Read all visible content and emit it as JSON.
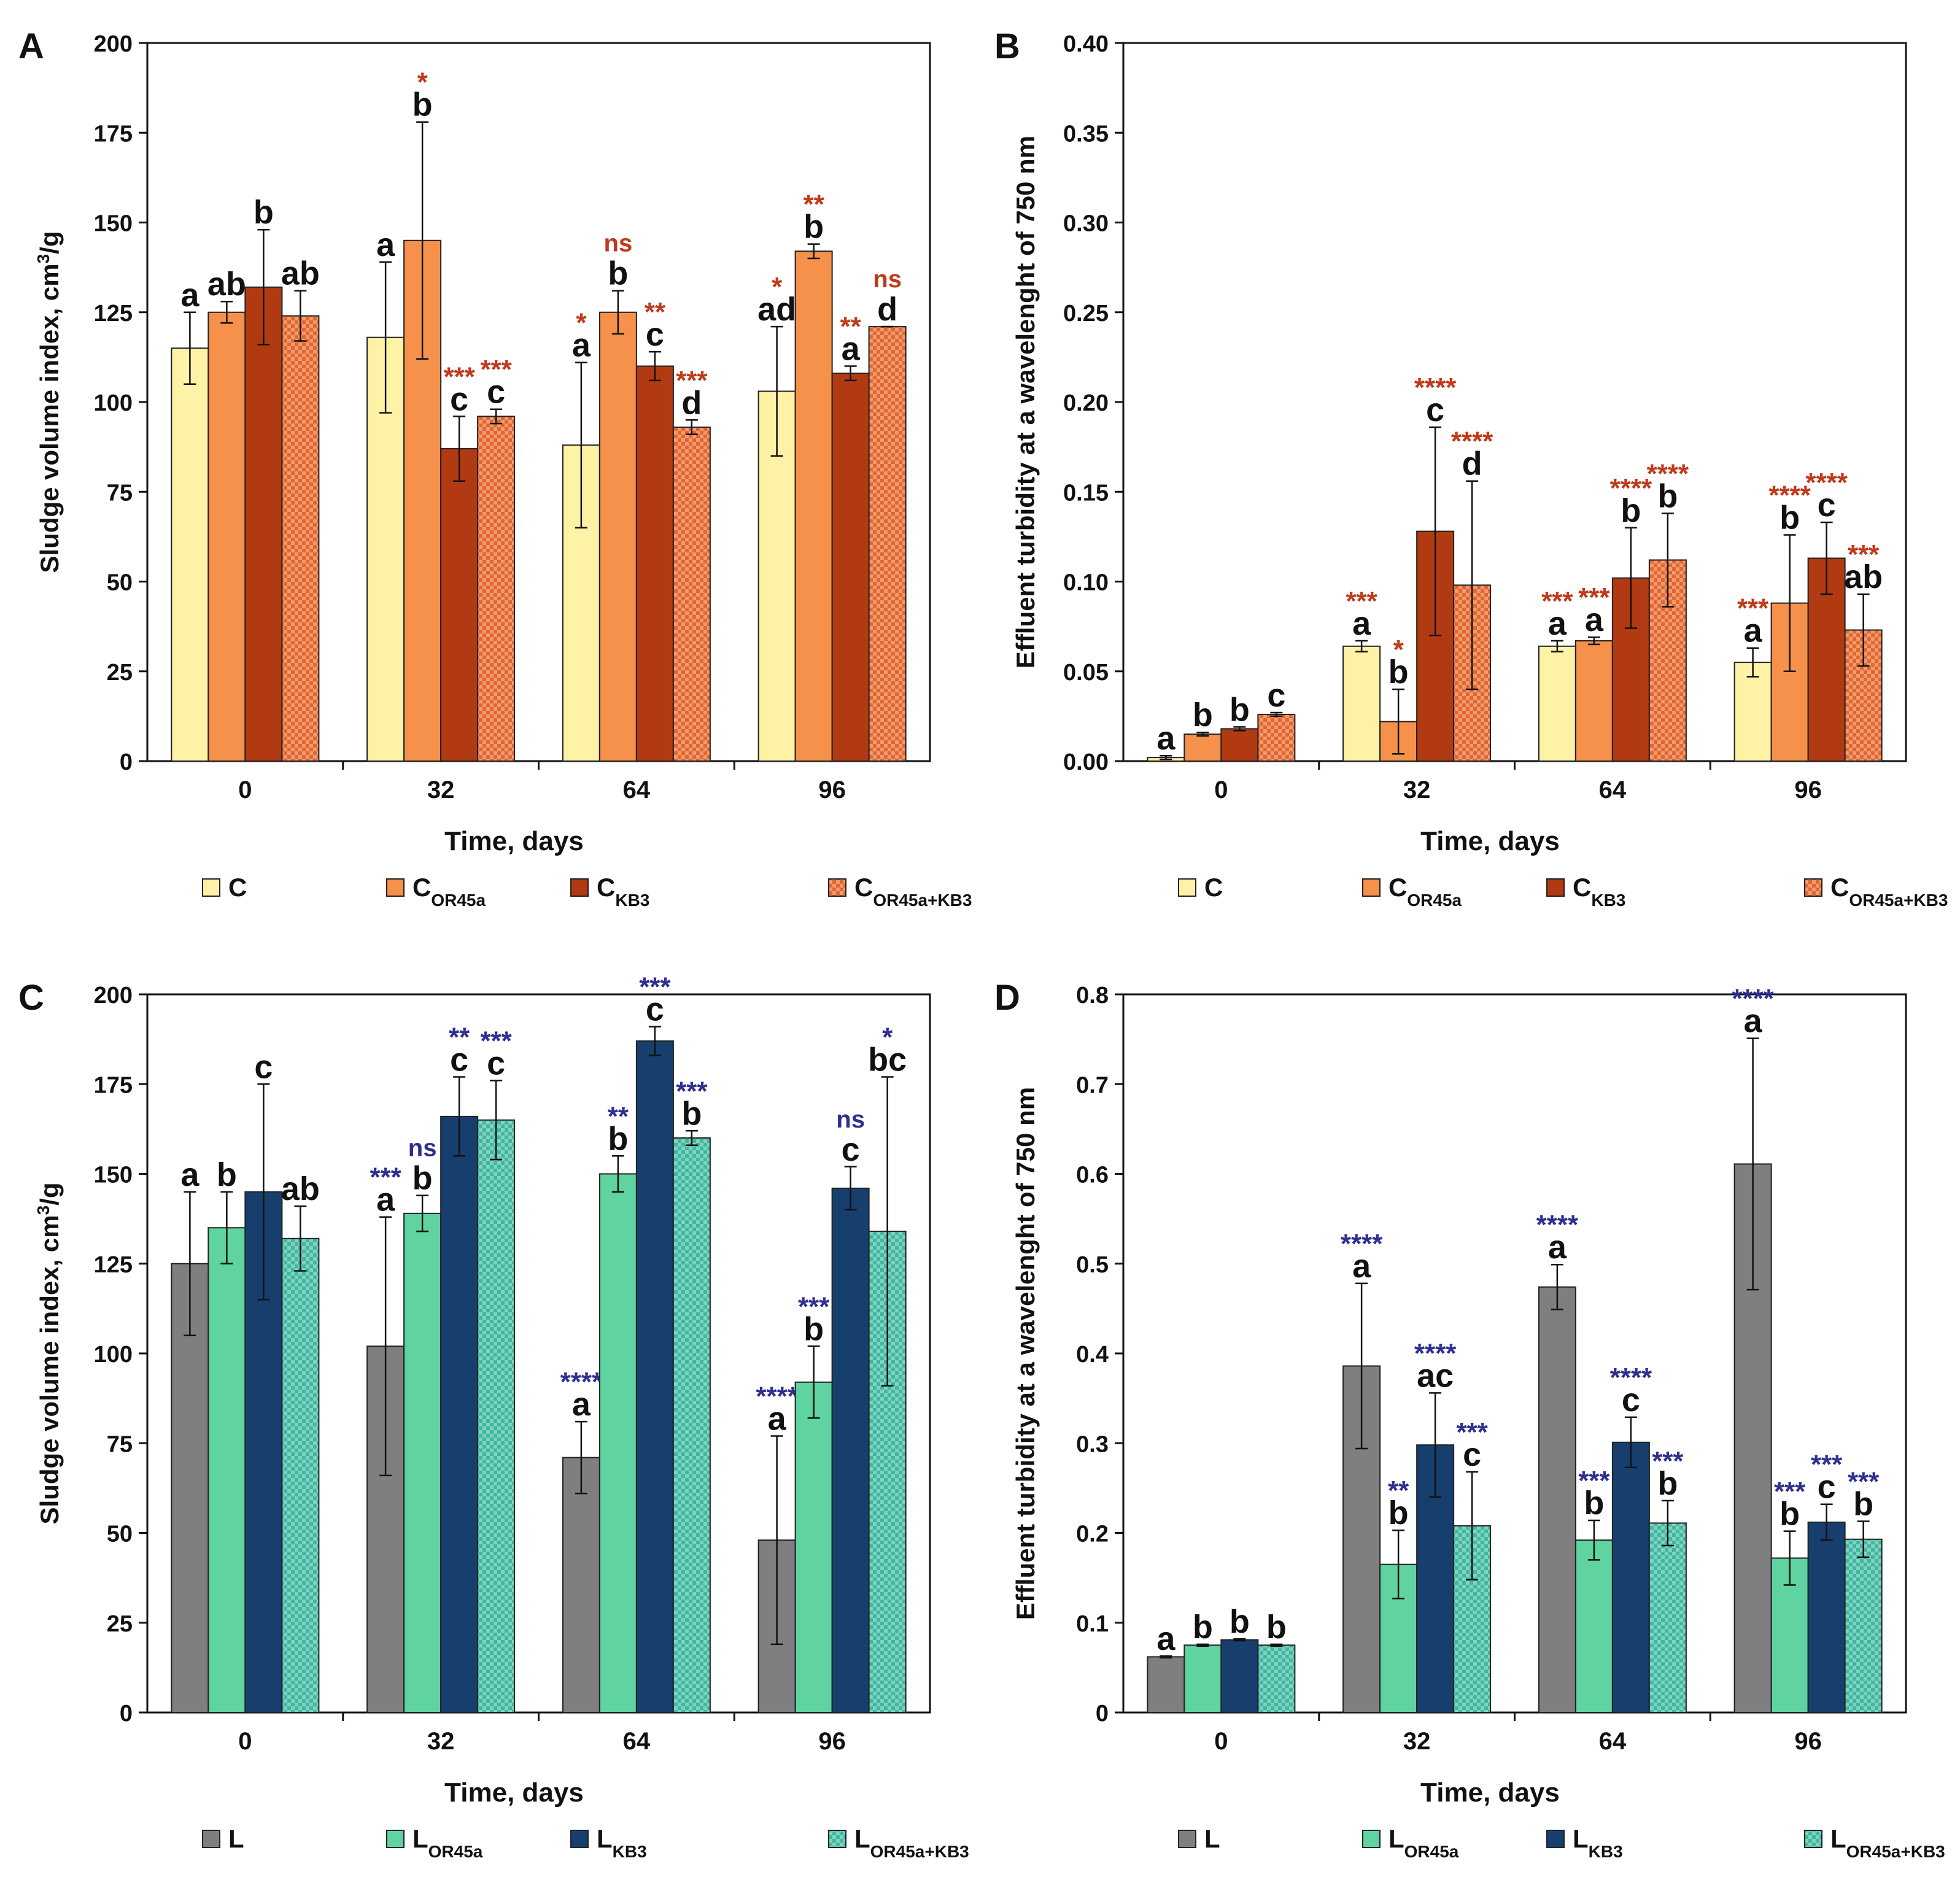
{
  "chart_data": [
    {
      "panel": "A",
      "type": "bar",
      "xlabel": "Time, days",
      "ylabel": "Sludge volume index, cm3/g",
      "ylim": [
        0,
        200
      ],
      "yticks": [
        "0",
        "25",
        "50",
        "75",
        "100",
        "125",
        "150",
        "175",
        "200"
      ],
      "categories": [
        "0",
        "32",
        "64",
        "96"
      ],
      "sig_color": "#c0391b",
      "series": [
        {
          "name": "C",
          "base": "C",
          "sub": "",
          "color": "#fdf2a6",
          "pattern": false,
          "values": [
            115,
            118,
            88,
            103
          ],
          "errors": [
            10,
            21,
            23,
            18
          ],
          "letters": [
            "a",
            "a",
            "a",
            "ad"
          ],
          "sig": [
            "",
            "",
            "*",
            "*"
          ]
        },
        {
          "name": "COR45a",
          "base": "C",
          "sub": "OR45a",
          "color": "#f5914a",
          "pattern": false,
          "values": [
            125,
            145,
            125,
            142
          ],
          "errors": [
            3,
            33,
            6,
            2
          ],
          "letters": [
            "ab",
            "b",
            "b",
            "b"
          ],
          "sig": [
            "",
            "*",
            "ns",
            "**"
          ]
        },
        {
          "name": "CKB3",
          "base": "C",
          "sub": "KB3",
          "color": "#b23a12",
          "pattern": false,
          "values": [
            132,
            87,
            110,
            108
          ],
          "errors": [
            16,
            9,
            4,
            2
          ],
          "letters": [
            "b",
            "c",
            "c",
            "a"
          ],
          "sig": [
            "",
            "***",
            "**",
            "**"
          ]
        },
        {
          "name": "COR45a+KB3",
          "base": "C",
          "sub": "OR45a+KB3",
          "color": "#e5662b",
          "pattern": true,
          "values": [
            124,
            96,
            93,
            121
          ],
          "errors": [
            7,
            2,
            2,
            0
          ],
          "letters": [
            "ab",
            "c",
            "d",
            "d"
          ],
          "sig": [
            "",
            "***",
            "***",
            "ns"
          ]
        }
      ]
    },
    {
      "panel": "B",
      "type": "bar",
      "xlabel": "Time, days",
      "ylabel": "Effluent turbidity at a wavelenght of 750 nm",
      "ylim": [
        0,
        0.4
      ],
      "yticks": [
        "0.00",
        "0.05",
        "0.10",
        "0.15",
        "0.20",
        "0.25",
        "0.30",
        "0.35",
        "0.40"
      ],
      "categories": [
        "0",
        "32",
        "64",
        "96"
      ],
      "sig_color": "#c0391b",
      "series": [
        {
          "name": "C",
          "base": "C",
          "sub": "",
          "color": "#fdf2a6",
          "pattern": false,
          "values": [
            0.002,
            0.064,
            0.064,
            0.055
          ],
          "errors": [
            0.001,
            0.003,
            0.003,
            0.008
          ],
          "letters": [
            "a",
            "a",
            "a",
            "a"
          ],
          "sig": [
            "",
            "***",
            "***",
            "***"
          ]
        },
        {
          "name": "COR45a",
          "base": "C",
          "sub": "OR45a",
          "color": "#f5914a",
          "pattern": false,
          "values": [
            0.015,
            0.022,
            0.067,
            0.088
          ],
          "errors": [
            0.001,
            0.018,
            0.002,
            0.038
          ],
          "letters": [
            "b",
            "b",
            "a",
            "b"
          ],
          "sig": [
            "",
            "*",
            "***",
            "****"
          ]
        },
        {
          "name": "CKB3",
          "base": "C",
          "sub": "KB3",
          "color": "#b23a12",
          "pattern": false,
          "values": [
            0.018,
            0.128,
            0.102,
            0.113
          ],
          "errors": [
            0.001,
            0.058,
            0.028,
            0.02
          ],
          "letters": [
            "b",
            "c",
            "b",
            "c"
          ],
          "sig": [
            "",
            "****",
            "****",
            "****"
          ]
        },
        {
          "name": "COR45a+KB3",
          "base": "C",
          "sub": "OR45a+KB3",
          "color": "#e5662b",
          "pattern": true,
          "values": [
            0.026,
            0.098,
            0.112,
            0.073
          ],
          "errors": [
            0.001,
            0.058,
            0.026,
            0.02
          ],
          "letters": [
            "c",
            "d",
            "b",
            "ab"
          ],
          "sig": [
            "",
            "****",
            "****",
            "***"
          ]
        }
      ]
    },
    {
      "panel": "C",
      "type": "bar",
      "xlabel": "Time, days",
      "ylabel": "Sludge volume index, cm3/g",
      "ylim": [
        0,
        200
      ],
      "yticks": [
        "0",
        "25",
        "50",
        "75",
        "100",
        "125",
        "150",
        "175",
        "200"
      ],
      "categories": [
        "0",
        "32",
        "64",
        "96"
      ],
      "sig_color": "#2e2f8f",
      "series": [
        {
          "name": "L",
          "base": "L",
          "sub": "",
          "color": "#7f7f7f",
          "pattern": false,
          "values": [
            125,
            102,
            71,
            48
          ],
          "errors": [
            20,
            36,
            10,
            29
          ],
          "letters": [
            "a",
            "a",
            "a",
            "a"
          ],
          "sig": [
            "",
            "***",
            "****",
            "****"
          ]
        },
        {
          "name": "LOR45a",
          "base": "L",
          "sub": "OR45a",
          "color": "#5fd3a0",
          "pattern": false,
          "values": [
            135,
            139,
            150,
            92
          ],
          "errors": [
            10,
            5,
            5,
            10
          ],
          "letters": [
            "b",
            "b",
            "b",
            "b"
          ],
          "sig": [
            "",
            "ns",
            "**",
            "***"
          ]
        },
        {
          "name": "LKB3",
          "base": "L",
          "sub": "KB3",
          "color": "#163f6e",
          "pattern": false,
          "values": [
            145,
            166,
            187,
            146
          ],
          "errors": [
            30,
            11,
            4,
            6
          ],
          "letters": [
            "c",
            "c",
            "c",
            "c"
          ],
          "sig": [
            "",
            "**",
            "***",
            "ns"
          ]
        },
        {
          "name": "LOR45a+KB3",
          "base": "L",
          "sub": "OR45a+KB3",
          "color": "#3fb8a0",
          "pattern": true,
          "values": [
            132,
            165,
            160,
            134
          ],
          "errors": [
            9,
            11,
            2,
            43
          ],
          "letters": [
            "ab",
            "c",
            "b",
            "bc"
          ],
          "sig": [
            "",
            "***",
            "***",
            "*"
          ]
        }
      ]
    },
    {
      "panel": "D",
      "type": "bar",
      "xlabel": "Time, days",
      "ylabel": "Effluent turbidity at a wavelenght of 750 nm",
      "ylim": [
        0,
        0.8
      ],
      "yticks": [
        "0",
        "0.1",
        "0.2",
        "0.3",
        "0.4",
        "0.5",
        "0.6",
        "0.7",
        "0.8"
      ],
      "categories": [
        "0",
        "32",
        "64",
        "96"
      ],
      "sig_color": "#2e2f8f",
      "series": [
        {
          "name": "L",
          "base": "L",
          "sub": "",
          "color": "#7f7f7f",
          "pattern": false,
          "values": [
            0.062,
            0.386,
            0.474,
            0.611
          ],
          "errors": [
            0.001,
            0.092,
            0.025,
            0.14
          ],
          "letters": [
            "a",
            "a",
            "a",
            "a"
          ],
          "sig": [
            "",
            "****",
            "****",
            "****"
          ]
        },
        {
          "name": "LOR45a",
          "base": "L",
          "sub": "OR45a",
          "color": "#5fd3a0",
          "pattern": false,
          "values": [
            0.075,
            0.165,
            0.192,
            0.172
          ],
          "errors": [
            0.001,
            0.038,
            0.022,
            0.03
          ],
          "letters": [
            "b",
            "b",
            "b",
            "b"
          ],
          "sig": [
            "",
            "**",
            "***",
            "***"
          ]
        },
        {
          "name": "LKB3",
          "base": "L",
          "sub": "KB3",
          "color": "#163f6e",
          "pattern": false,
          "values": [
            0.081,
            0.298,
            0.301,
            0.212
          ],
          "errors": [
            0.001,
            0.058,
            0.028,
            0.02
          ],
          "letters": [
            "b",
            "ac",
            "c",
            "c"
          ],
          "sig": [
            "",
            "****",
            "****",
            "***"
          ]
        },
        {
          "name": "LOR45a+KB3",
          "base": "L",
          "sub": "OR45a+KB3",
          "color": "#3fb8a0",
          "pattern": true,
          "values": [
            0.075,
            0.208,
            0.211,
            0.193
          ],
          "errors": [
            0.001,
            0.06,
            0.025,
            0.02
          ],
          "letters": [
            "b",
            "c",
            "b",
            "b"
          ],
          "sig": [
            "",
            "***",
            "***",
            "***"
          ]
        }
      ]
    }
  ]
}
